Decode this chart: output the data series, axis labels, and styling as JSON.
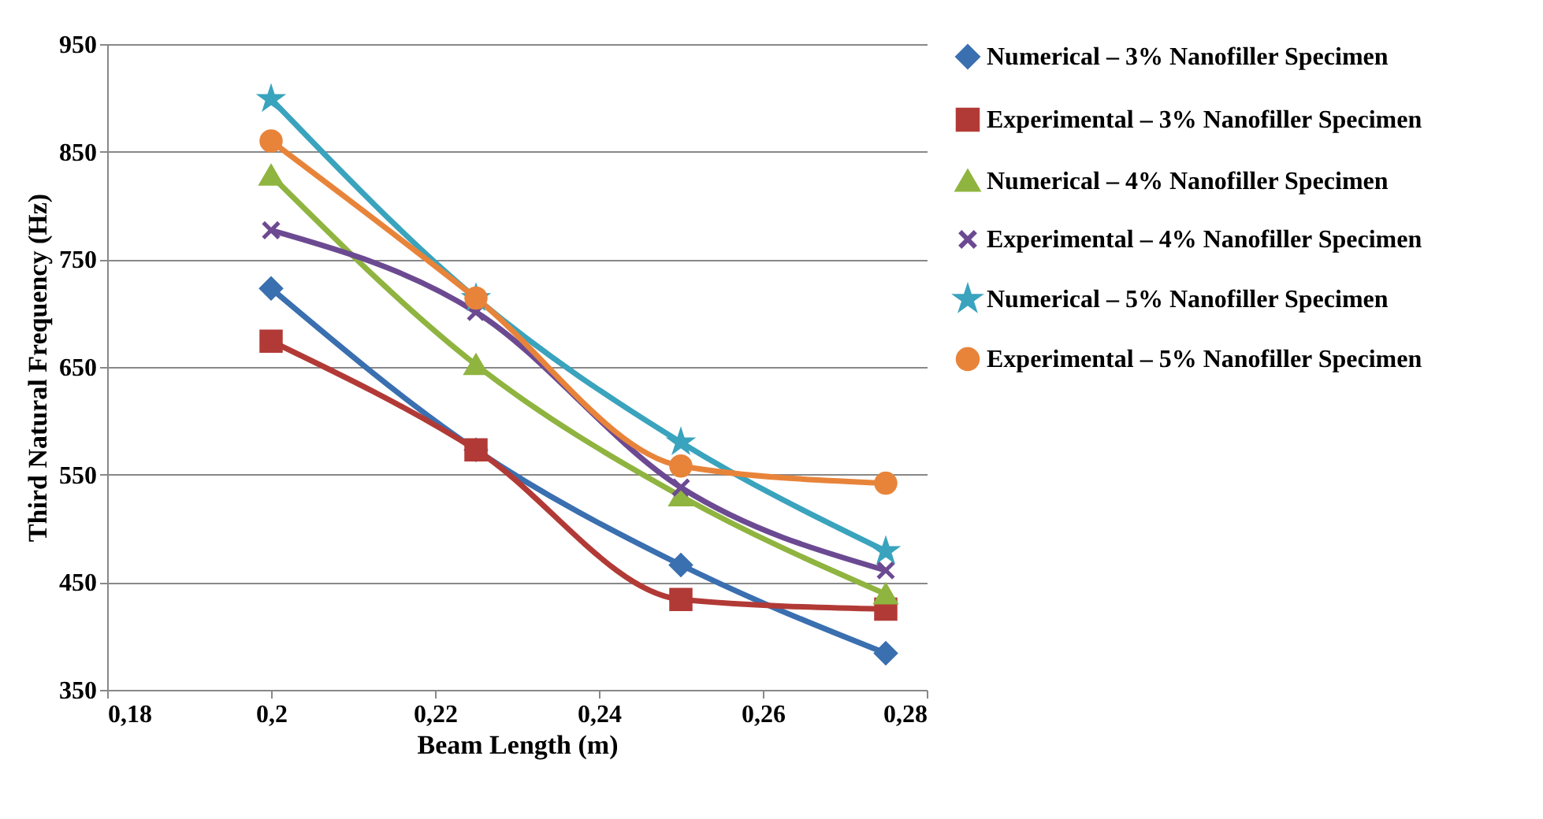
{
  "chart_data": {
    "type": "line",
    "xlabel": "Beam Length (m)",
    "ylabel": "Third Natural Frequency (Hz)",
    "x": [
      0.2,
      0.225,
      0.25,
      0.275
    ],
    "xlim": [
      0.18,
      0.28
    ],
    "xticks": [
      {
        "value": 0.18,
        "label": "0,18"
      },
      {
        "value": 0.2,
        "label": "0,2"
      },
      {
        "value": 0.22,
        "label": "0,22"
      },
      {
        "value": 0.24,
        "label": "0,24"
      },
      {
        "value": 0.26,
        "label": "0,26"
      },
      {
        "value": 0.28,
        "label": "0,28"
      }
    ],
    "ylim": [
      350,
      950
    ],
    "yticks": [
      350,
      450,
      550,
      650,
      750,
      850,
      950
    ],
    "grid": "y",
    "legend": "right",
    "series": [
      {
        "name": "Numerical – 3% Nanofiller Specimen",
        "color": "#3a6fb0",
        "marker": "diamond",
        "values": [
          723,
          573,
          466,
          384
        ]
      },
      {
        "name": "Experimental – 3% Nanofiller Specimen",
        "color": "#b23a36",
        "marker": "square",
        "values": [
          674,
          573,
          434,
          425
        ]
      },
      {
        "name": "Numerical – 4% Nanofiller Specimen",
        "color": "#8fb43f",
        "marker": "triangle",
        "values": [
          828,
          652,
          530,
          439
        ]
      },
      {
        "name": "Experimental – 4% Nanofiller Specimen",
        "color": "#6c4a92",
        "marker": "cross",
        "values": [
          777,
          701,
          538,
          461
        ]
      },
      {
        "name": "Numerical – 5% Nanofiller Specimen",
        "color": "#3aa3bd",
        "marker": "star",
        "values": [
          899,
          714,
          580,
          479
        ]
      },
      {
        "name": "Experimental – 5% Nanofiller Specimen",
        "color": "#e8843a",
        "marker": "circle",
        "values": [
          860,
          714,
          558,
          542
        ]
      }
    ]
  }
}
